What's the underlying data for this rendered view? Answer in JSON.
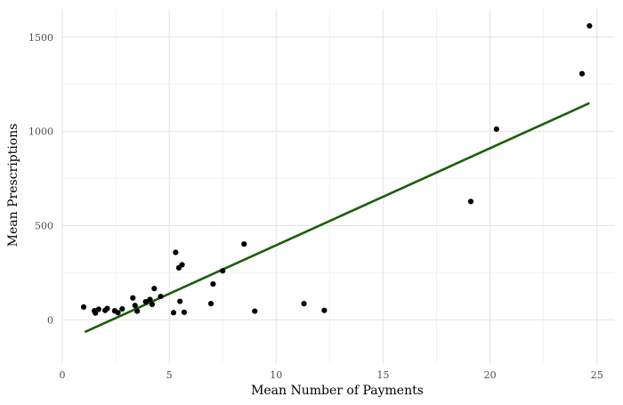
{
  "chart_data": {
    "type": "scatter",
    "title": "",
    "xlabel": "Mean Number of Payments",
    "ylabel": "Mean Prescriptions",
    "xlim": [
      0,
      25.8
    ],
    "ylim": [
      -230,
      1650
    ],
    "x_ticks": [
      0,
      5,
      10,
      15,
      20,
      25
    ],
    "y_ticks": [
      0,
      500,
      1000,
      1500
    ],
    "x_tick_labels": [
      "0",
      "5",
      "10",
      "15",
      "20",
      "25"
    ],
    "y_tick_labels": [
      "0",
      "500",
      "1000",
      "1500"
    ],
    "grid": true,
    "legend": "none",
    "point_color": "#000000",
    "points": [
      {
        "x": 1.0,
        "y": 68
      },
      {
        "x": 1.5,
        "y": 48
      },
      {
        "x": 1.55,
        "y": 36
      },
      {
        "x": 1.7,
        "y": 56
      },
      {
        "x": 2.0,
        "y": 50
      },
      {
        "x": 2.1,
        "y": 60
      },
      {
        "x": 2.45,
        "y": 48
      },
      {
        "x": 2.6,
        "y": 38
      },
      {
        "x": 2.8,
        "y": 58
      },
      {
        "x": 3.3,
        "y": 116
      },
      {
        "x": 3.4,
        "y": 76
      },
      {
        "x": 3.5,
        "y": 46
      },
      {
        "x": 3.9,
        "y": 96
      },
      {
        "x": 4.1,
        "y": 108
      },
      {
        "x": 4.2,
        "y": 82
      },
      {
        "x": 4.3,
        "y": 166
      },
      {
        "x": 4.6,
        "y": 124
      },
      {
        "x": 5.2,
        "y": 38
      },
      {
        "x": 5.3,
        "y": 358
      },
      {
        "x": 5.45,
        "y": 276
      },
      {
        "x": 5.5,
        "y": 98
      },
      {
        "x": 5.6,
        "y": 292
      },
      {
        "x": 5.7,
        "y": 40
      },
      {
        "x": 6.95,
        "y": 86
      },
      {
        "x": 7.05,
        "y": 190
      },
      {
        "x": 7.5,
        "y": 260
      },
      {
        "x": 8.5,
        "y": 402
      },
      {
        "x": 9.0,
        "y": 46
      },
      {
        "x": 11.3,
        "y": 86
      },
      {
        "x": 12.25,
        "y": 50
      },
      {
        "x": 19.1,
        "y": 628
      },
      {
        "x": 20.3,
        "y": 1012
      },
      {
        "x": 24.3,
        "y": 1306
      },
      {
        "x": 24.65,
        "y": 1560
      }
    ],
    "trend_line": {
      "color": "#1a5e0a",
      "x": [
        1.05,
        24.65
      ],
      "y": [
        -65,
        1150
      ]
    }
  }
}
